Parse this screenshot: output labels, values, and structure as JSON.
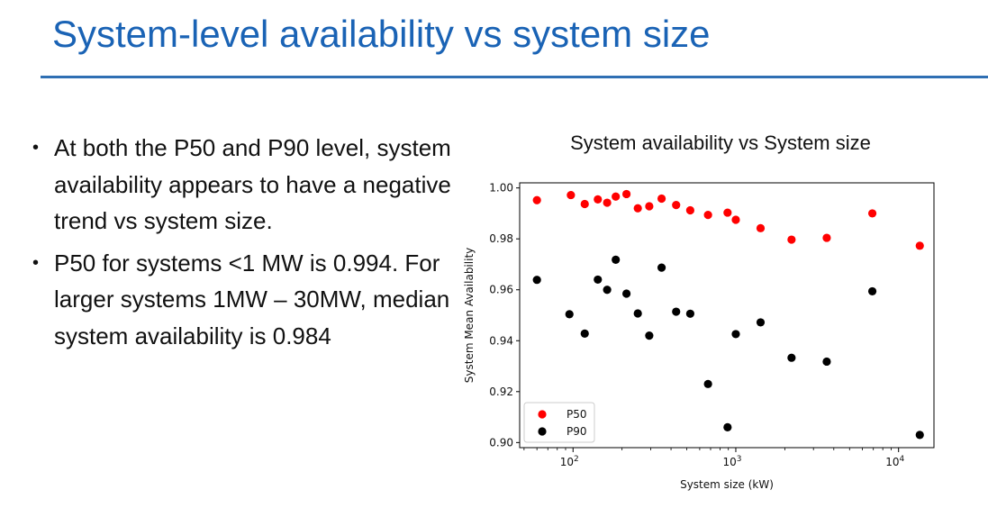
{
  "slide": {
    "title": "System-level availability vs system size",
    "bullets": [
      "At both the P50 and P90 level, system availability appears to have a negative trend vs system size.",
      "P50 for systems <1 MW is 0.994. For larger systems 1MW – 30MW, median system availability is 0.984"
    ]
  },
  "colors": {
    "title": "#1a63b5",
    "rule": "#2f6fb3",
    "p50": "#ff0000",
    "p90": "#000000"
  },
  "chart_data": {
    "type": "scatter",
    "title": "System availability vs System size",
    "xlabel": "System size (kW)",
    "ylabel": "System Mean Availability",
    "xscale": "log",
    "xlim": [
      47,
      16500
    ],
    "ylim": [
      0.898,
      1.002
    ],
    "xticks": [
      {
        "value": 100,
        "label": "10",
        "exp": "2"
      },
      {
        "value": 1000,
        "label": "10",
        "exp": "3"
      },
      {
        "value": 10000,
        "label": "10",
        "exp": "4"
      }
    ],
    "yticks": [
      0.9,
      0.92,
      0.94,
      0.96,
      0.98,
      1.0
    ],
    "ytick_labels": [
      "0.90",
      "0.92",
      "0.94",
      "0.96",
      "0.98",
      "1.00"
    ],
    "legend_position": "lower-left",
    "grid": false,
    "series": [
      {
        "name": "P50",
        "color": "#ff0000",
        "points": [
          [
            60,
            0.9952
          ],
          [
            97,
            0.9972
          ],
          [
            118,
            0.9937
          ],
          [
            142,
            0.9955
          ],
          [
            162,
            0.9942
          ],
          [
            183,
            0.9966
          ],
          [
            213,
            0.9976
          ],
          [
            250,
            0.992
          ],
          [
            294,
            0.9928
          ],
          [
            350,
            0.9958
          ],
          [
            430,
            0.9933
          ],
          [
            525,
            0.9912
          ],
          [
            675,
            0.9894
          ],
          [
            890,
            0.9903
          ],
          [
            1000,
            0.9875
          ],
          [
            1420,
            0.9842
          ],
          [
            2200,
            0.9797
          ],
          [
            3620,
            0.9804
          ],
          [
            6900,
            0.99
          ],
          [
            13500,
            0.9773
          ]
        ]
      },
      {
        "name": "P90",
        "color": "#000000",
        "points": [
          [
            60,
            0.9639
          ],
          [
            95,
            0.9504
          ],
          [
            118,
            0.9428
          ],
          [
            142,
            0.964
          ],
          [
            162,
            0.96
          ],
          [
            183,
            0.9718
          ],
          [
            213,
            0.9585
          ],
          [
            250,
            0.9507
          ],
          [
            294,
            0.942
          ],
          [
            350,
            0.9687
          ],
          [
            430,
            0.9514
          ],
          [
            525,
            0.9506
          ],
          [
            675,
            0.923
          ],
          [
            890,
            0.906
          ],
          [
            1000,
            0.9426
          ],
          [
            1420,
            0.9472
          ],
          [
            2200,
            0.9333
          ],
          [
            3620,
            0.9318
          ],
          [
            6900,
            0.9594
          ],
          [
            13500,
            0.903
          ]
        ]
      }
    ]
  }
}
